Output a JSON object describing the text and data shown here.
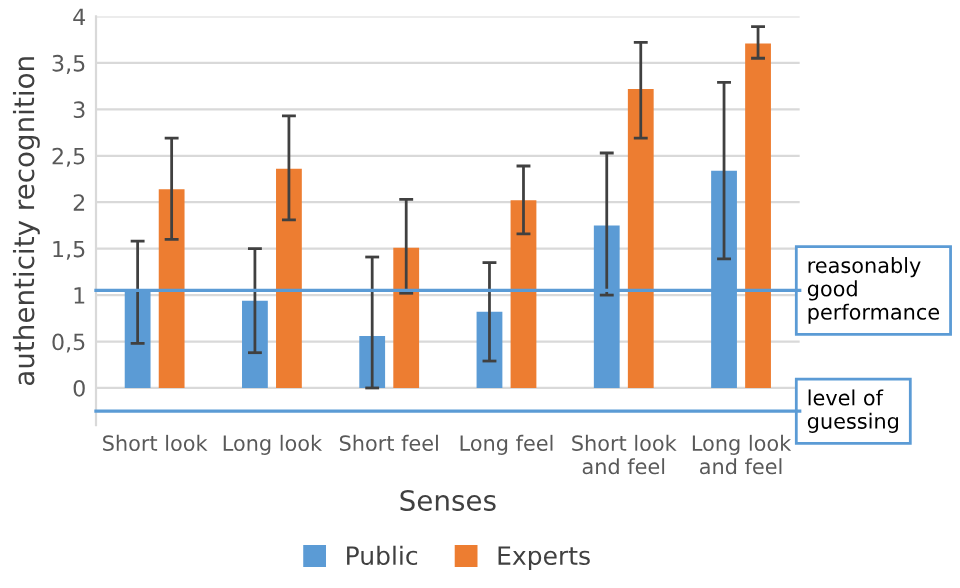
{
  "chart_data": {
    "type": "bar",
    "xlabel": "Senses",
    "ylabel": "authenticity recognition",
    "categories": [
      "Short look",
      "Long look",
      "Short feel",
      "Long feel",
      "Short look\nand feel",
      "Long look\nand feel"
    ],
    "series": [
      {
        "name": "Public",
        "color": "#5b9bd5",
        "values": [
          1.05,
          0.94,
          0.56,
          0.82,
          1.75,
          2.34
        ],
        "errors": [
          [
            0.48,
            1.58
          ],
          [
            0.38,
            1.5
          ],
          [
            0.0,
            1.41
          ],
          [
            0.29,
            1.35
          ],
          [
            1.0,
            2.53
          ],
          [
            1.39,
            3.29
          ]
        ]
      },
      {
        "name": "Experts",
        "color": "#ed7d31",
        "values": [
          2.14,
          2.36,
          1.51,
          2.02,
          3.22,
          3.71
        ],
        "errors": [
          [
            1.6,
            2.69
          ],
          [
            1.81,
            2.93
          ],
          [
            1.02,
            2.03
          ],
          [
            1.66,
            2.39
          ],
          [
            2.69,
            3.72
          ],
          [
            3.55,
            3.89
          ]
        ]
      }
    ],
    "ylim": [
      -0.4,
      4
    ],
    "yticks": [
      0,
      {
        "value": 0.5,
        "label": "0,5"
      },
      1,
      {
        "value": 1.5,
        "label": "1,5"
      },
      2,
      {
        "value": 2.5,
        "label": "2,5"
      },
      3,
      {
        "value": 3.5,
        "label": "3,5"
      },
      4
    ],
    "grid": "y",
    "legend": "bottom",
    "ref_lines": [
      {
        "axis": "y",
        "value": 1.05,
        "label": "reasonably good performance",
        "color": "#5b9bd5"
      },
      {
        "axis": "y",
        "value": -0.25,
        "label": "level of guessing",
        "color": "#5b9bd5"
      }
    ]
  }
}
